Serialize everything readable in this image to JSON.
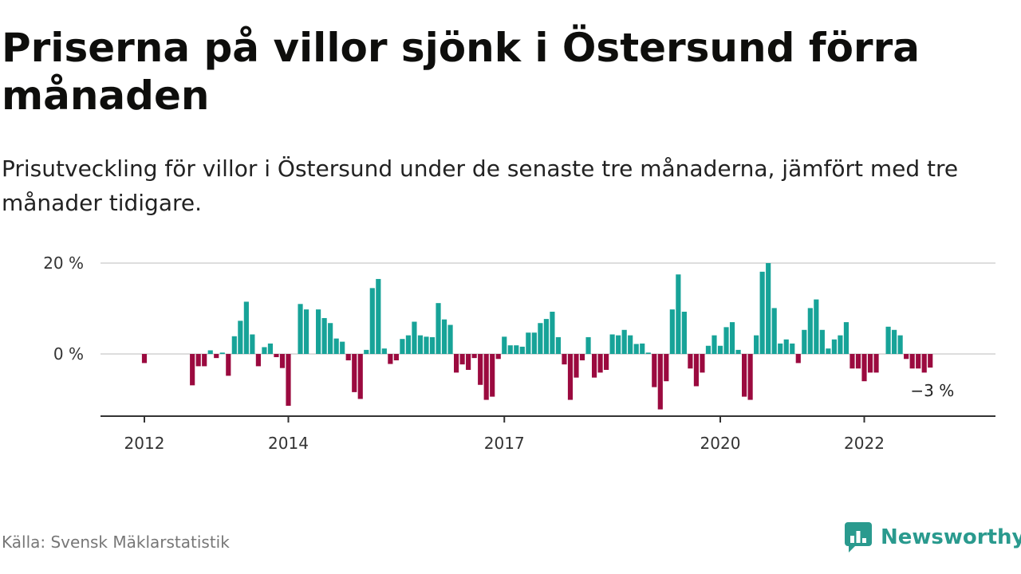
{
  "title": "Priserna på villor sjönk i Östersund förra månaden",
  "subtitle": "Prisutveckling för villor i Östersund under de senaste tre månaderna, jämfört med tre månader tidigare.",
  "source": "Källa: Svensk Mäklarstatistik",
  "brand": {
    "name": "Newsworthy",
    "icon": "newsworthy-logo-icon",
    "color": "#2a9a8e"
  },
  "colors": {
    "positive": "#17a398",
    "negative": "#9b0a3f",
    "grid": "#dddddd",
    "axis": "#333333"
  },
  "chart_data": {
    "type": "bar",
    "title": "Priserna på villor sjönk i Östersund förra månaden",
    "subtitle": "Prisutveckling för villor i Östersund under de senaste tre månaderna, jämfört med tre månader tidigare.",
    "xlabel": "",
    "ylabel": "",
    "ylim": [
      -14,
      20
    ],
    "y_ticks": [
      {
        "value": 0,
        "label": "0 %"
      },
      {
        "value": 20,
        "label": "20 %"
      }
    ],
    "x_ticks": [
      {
        "month": "2012-01",
        "label": "2012"
      },
      {
        "month": "2014-01",
        "label": "2014"
      },
      {
        "month": "2017-01",
        "label": "2017"
      },
      {
        "month": "2020-01",
        "label": "2020"
      },
      {
        "month": "2022-01",
        "label": "2022"
      }
    ],
    "grid": "horizontal",
    "end_label": "−3 %",
    "series": [
      {
        "values": [
          {
            "month": "2012-01",
            "value": -2
          },
          {
            "month": "2012-09",
            "value": -6.9
          },
          {
            "month": "2012-10",
            "value": -2.7
          },
          {
            "month": "2012-11",
            "value": -2.7
          },
          {
            "month": "2012-12",
            "value": 0.8
          },
          {
            "month": "2013-01",
            "value": -0.9
          },
          {
            "month": "2013-02",
            "value": 0.3
          },
          {
            "month": "2013-03",
            "value": -4.8
          },
          {
            "month": "2013-04",
            "value": 3.9
          },
          {
            "month": "2013-05",
            "value": 7.3
          },
          {
            "month": "2013-06",
            "value": 11.5
          },
          {
            "month": "2013-07",
            "value": 4.3
          },
          {
            "month": "2013-08",
            "value": -2.7
          },
          {
            "month": "2013-09",
            "value": 1.5
          },
          {
            "month": "2013-10",
            "value": 2.3
          },
          {
            "month": "2013-11",
            "value": -0.7
          },
          {
            "month": "2013-12",
            "value": -3.1
          },
          {
            "month": "2014-01",
            "value": -11.4
          },
          {
            "month": "2014-03",
            "value": 11
          },
          {
            "month": "2014-04",
            "value": 9.8
          },
          {
            "month": "2014-06",
            "value": 9.8
          },
          {
            "month": "2014-07",
            "value": 7.9
          },
          {
            "month": "2014-08",
            "value": 6.8
          },
          {
            "month": "2014-09",
            "value": 3.4
          },
          {
            "month": "2014-10",
            "value": 2.7
          },
          {
            "month": "2014-11",
            "value": -1.4
          },
          {
            "month": "2014-12",
            "value": -8.4
          },
          {
            "month": "2015-01",
            "value": -9.9
          },
          {
            "month": "2015-02",
            "value": 0.9
          },
          {
            "month": "2015-03",
            "value": 14.5
          },
          {
            "month": "2015-04",
            "value": 16.5
          },
          {
            "month": "2015-05",
            "value": 1.2
          },
          {
            "month": "2015-06",
            "value": -2.2
          },
          {
            "month": "2015-07",
            "value": -1.4
          },
          {
            "month": "2015-08",
            "value": 3.3
          },
          {
            "month": "2015-09",
            "value": 4.1
          },
          {
            "month": "2015-10",
            "value": 7.1
          },
          {
            "month": "2015-11",
            "value": 4.1
          },
          {
            "month": "2015-12",
            "value": 3.8
          },
          {
            "month": "2016-01",
            "value": 3.7
          },
          {
            "month": "2016-02",
            "value": 11.2
          },
          {
            "month": "2016-03",
            "value": 7.6
          },
          {
            "month": "2016-04",
            "value": 6.4
          },
          {
            "month": "2016-05",
            "value": -4.1
          },
          {
            "month": "2016-06",
            "value": -2.3
          },
          {
            "month": "2016-07",
            "value": -3.5
          },
          {
            "month": "2016-08",
            "value": -0.9
          },
          {
            "month": "2016-09",
            "value": -6.8
          },
          {
            "month": "2016-10",
            "value": -10.1
          },
          {
            "month": "2016-11",
            "value": -9.4
          },
          {
            "month": "2016-12",
            "value": -1.1
          },
          {
            "month": "2017-01",
            "value": 3.8
          },
          {
            "month": "2017-02",
            "value": 1.9
          },
          {
            "month": "2017-03",
            "value": 1.9
          },
          {
            "month": "2017-04",
            "value": 1.6
          },
          {
            "month": "2017-05",
            "value": 4.7
          },
          {
            "month": "2017-06",
            "value": 4.7
          },
          {
            "month": "2017-07",
            "value": 6.8
          },
          {
            "month": "2017-08",
            "value": 7.7
          },
          {
            "month": "2017-09",
            "value": 9.3
          },
          {
            "month": "2017-10",
            "value": 3.7
          },
          {
            "month": "2017-11",
            "value": -2.3
          },
          {
            "month": "2017-12",
            "value": -10.1
          },
          {
            "month": "2018-01",
            "value": -5.2
          },
          {
            "month": "2018-02",
            "value": -1.4
          },
          {
            "month": "2018-03",
            "value": 3.7
          },
          {
            "month": "2018-04",
            "value": -5.2
          },
          {
            "month": "2018-05",
            "value": -4.1
          },
          {
            "month": "2018-06",
            "value": -3.5
          },
          {
            "month": "2018-07",
            "value": 4.3
          },
          {
            "month": "2018-08",
            "value": 4.1
          },
          {
            "month": "2018-09",
            "value": 5.3
          },
          {
            "month": "2018-10",
            "value": 4.1
          },
          {
            "month": "2018-11",
            "value": 2.2
          },
          {
            "month": "2018-12",
            "value": 2.3
          },
          {
            "month": "2019-01",
            "value": 0.3
          },
          {
            "month": "2019-02",
            "value": -7.3
          },
          {
            "month": "2019-03",
            "value": -12.2
          },
          {
            "month": "2019-04",
            "value": -6
          },
          {
            "month": "2019-05",
            "value": 9.8
          },
          {
            "month": "2019-06",
            "value": 17.5
          },
          {
            "month": "2019-07",
            "value": 9.3
          },
          {
            "month": "2019-08",
            "value": -3.2
          },
          {
            "month": "2019-09",
            "value": -7.1
          },
          {
            "month": "2019-10",
            "value": -4.1
          },
          {
            "month": "2019-11",
            "value": 1.8
          },
          {
            "month": "2019-12",
            "value": 4.1
          },
          {
            "month": "2020-01",
            "value": 1.8
          },
          {
            "month": "2020-02",
            "value": 5.9
          },
          {
            "month": "2020-03",
            "value": 7
          },
          {
            "month": "2020-04",
            "value": 0.9
          },
          {
            "month": "2020-05",
            "value": -9.4
          },
          {
            "month": "2020-06",
            "value": -10.1
          },
          {
            "month": "2020-07",
            "value": 4.1
          },
          {
            "month": "2020-08",
            "value": 18.1
          },
          {
            "month": "2020-09",
            "value": 20
          },
          {
            "month": "2020-10",
            "value": 10.1
          },
          {
            "month": "2020-11",
            "value": 2.3
          },
          {
            "month": "2020-12",
            "value": 3.2
          },
          {
            "month": "2021-01",
            "value": 2.3
          },
          {
            "month": "2021-02",
            "value": -2
          },
          {
            "month": "2021-03",
            "value": 5.3
          },
          {
            "month": "2021-04",
            "value": 10.1
          },
          {
            "month": "2021-05",
            "value": 12
          },
          {
            "month": "2021-06",
            "value": 5.3
          },
          {
            "month": "2021-07",
            "value": 1.2
          },
          {
            "month": "2021-08",
            "value": 3.2
          },
          {
            "month": "2021-09",
            "value": 4.1
          },
          {
            "month": "2021-10",
            "value": 7
          },
          {
            "month": "2021-11",
            "value": -3.2
          },
          {
            "month": "2021-12",
            "value": -3.2
          },
          {
            "month": "2022-01",
            "value": -6
          },
          {
            "month": "2022-02",
            "value": -4.1
          },
          {
            "month": "2022-03",
            "value": -4.1
          },
          {
            "month": "2022-05",
            "value": 6
          },
          {
            "month": "2022-06",
            "value": 5.3
          },
          {
            "month": "2022-07",
            "value": 4.1
          },
          {
            "month": "2022-08",
            "value": -1.1
          },
          {
            "month": "2022-09",
            "value": -3.2
          },
          {
            "month": "2022-10",
            "value": -3.2
          },
          {
            "month": "2022-11",
            "value": -4.1
          },
          {
            "month": "2022-12",
            "value": -3
          }
        ]
      }
    ]
  }
}
